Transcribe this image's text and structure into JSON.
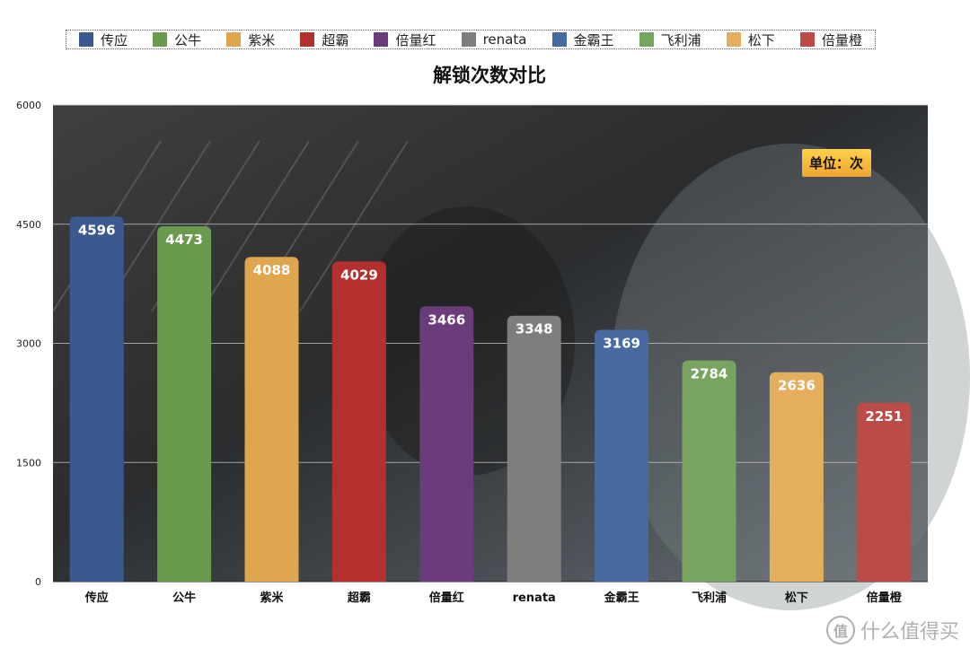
{
  "chart_data": {
    "type": "bar",
    "title": "解锁次数对比",
    "unit_label": "单位：次",
    "categories": [
      "传应",
      "公牛",
      "紫米",
      "超霸",
      "倍量红",
      "renata",
      "金霸王",
      "飞利浦",
      "松下",
      "倍量橙"
    ],
    "values": [
      4596,
      4473,
      4088,
      4029,
      3466,
      3348,
      3169,
      2784,
      2636,
      2251
    ],
    "colors": [
      "#3a5a8f",
      "#6a9a4e",
      "#e0a54f",
      "#b3302f",
      "#6a3c7a",
      "#7e7e7e",
      "#486aa2",
      "#77a560",
      "#e4ae5e",
      "#ba4b46"
    ],
    "ylim": [
      0,
      6000
    ],
    "yticks": [
      0,
      1500,
      3000,
      4500,
      6000
    ],
    "grid": true,
    "legend_position": "top"
  },
  "watermark": {
    "icon_glyph": "值",
    "text": "什么值得买"
  }
}
